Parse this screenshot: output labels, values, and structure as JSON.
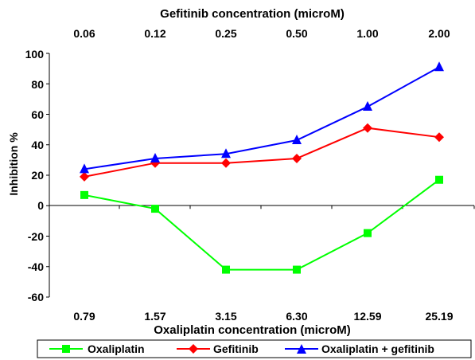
{
  "chart_data": {
    "type": "line",
    "top_axis": {
      "label": "Gefitinib concentration (microM)",
      "tick_labels": [
        "0.06",
        "0.12",
        "0.25",
        "0.50",
        "1.00",
        "2.00"
      ]
    },
    "bottom_axis": {
      "label": "Oxaliplatin concentration (microM)",
      "tick_labels": [
        "0.79",
        "1.57",
        "3.15",
        "6.30",
        "12.59",
        "25.19"
      ]
    },
    "ylabel": "Inhibition %",
    "ylim": [
      -60,
      100
    ],
    "yticks": [
      "100",
      "80",
      "60",
      "40",
      "20",
      "0",
      "-20",
      "-40",
      "-60"
    ],
    "grid": false,
    "legend_position": "bottom",
    "series": [
      {
        "name": "Oxaliplatin",
        "color": "#00ff00",
        "marker": "square",
        "values": [
          7,
          -2,
          -42,
          -42,
          -18,
          17
        ]
      },
      {
        "name": "Gefitinib",
        "color": "#ff0000",
        "marker": "diamond",
        "values": [
          19,
          28,
          28,
          31,
          51,
          45
        ]
      },
      {
        "name": "Oxaliplatin + gefitinib",
        "color": "#0000ff",
        "marker": "triangle",
        "values": [
          24,
          31,
          34,
          43,
          65,
          91
        ]
      }
    ]
  }
}
